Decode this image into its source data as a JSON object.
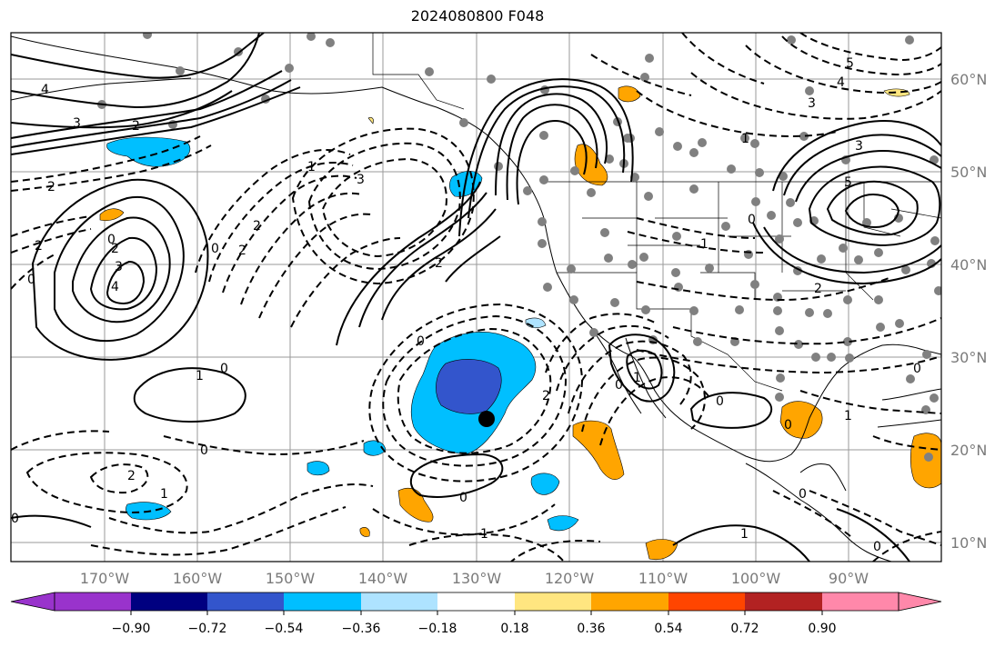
{
  "title": "2024080800 F048",
  "lon_labels": [
    "170°W",
    "160°W",
    "150°W",
    "140°W",
    "130°W",
    "120°W",
    "110°W",
    "100°W",
    "90°W"
  ],
  "lat_labels": [
    "60°N",
    "50°N",
    "40°N",
    "30°N",
    "20°N",
    "10°N"
  ],
  "colorbar": {
    "colors": [
      "#9933cc",
      "#000080",
      "#3355cc",
      "#00bfff",
      "#aee3ff",
      "#ffffff",
      "#ffe680",
      "#ffa500",
      "#ff4500",
      "#b22222",
      "#ff88aa"
    ],
    "ticks": [
      "−0.90",
      "−0.72",
      "−0.54",
      "−0.36",
      "−0.18",
      "0.18",
      "0.36",
      "0.54",
      "0.72",
      "0.90"
    ]
  },
  "contour_labels": [
    {
      "text": "4"
    },
    {
      "text": "3"
    },
    {
      "text": "2"
    },
    {
      "text": "2"
    },
    {
      "text": "0"
    },
    {
      "text": "1"
    },
    {
      "text": "3"
    },
    {
      "text": "4"
    },
    {
      "text": "2"
    },
    {
      "text": "0"
    },
    {
      "text": "2"
    },
    {
      "text": "2"
    },
    {
      "text": "3"
    },
    {
      "text": "2"
    },
    {
      "text": "0"
    },
    {
      "text": "2"
    },
    {
      "text": "1"
    },
    {
      "text": "0"
    },
    {
      "text": "1"
    },
    {
      "text": "2"
    },
    {
      "text": "1"
    },
    {
      "text": "0"
    },
    {
      "text": "1"
    },
    {
      "text": "5"
    },
    {
      "text": "4"
    },
    {
      "text": "3"
    },
    {
      "text": "3"
    },
    {
      "text": "5"
    },
    {
      "text": "1"
    },
    {
      "text": "0"
    },
    {
      "text": "2"
    },
    {
      "text": "0"
    },
    {
      "text": "2"
    },
    {
      "text": "1"
    },
    {
      "text": "0"
    },
    {
      "text": "0"
    },
    {
      "text": "1"
    },
    {
      "text": "0"
    },
    {
      "text": "0"
    },
    {
      "text": "0"
    },
    {
      "text": "1"
    },
    {
      "text": "0"
    },
    {
      "text": "0"
    },
    {
      "text": "0"
    }
  ]
}
